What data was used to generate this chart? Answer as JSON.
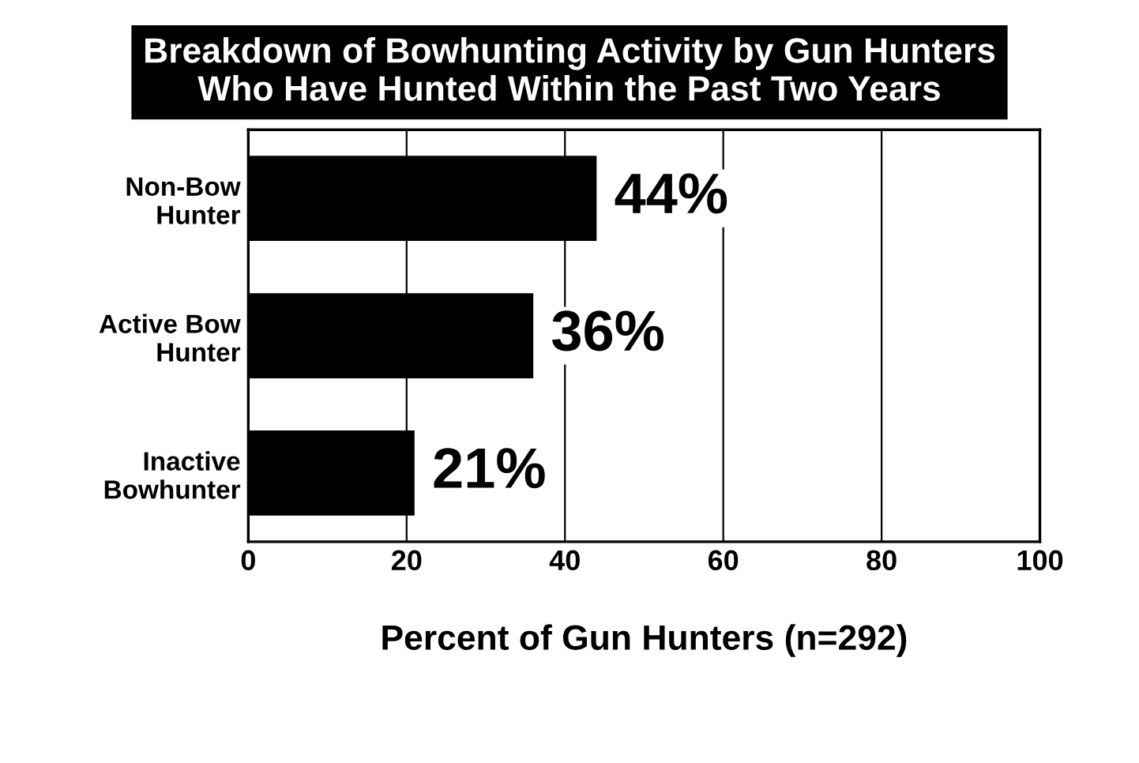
{
  "chart_data": {
    "type": "bar",
    "orientation": "horizontal",
    "title": "Breakdown of Bowhunting Activity by Gun Hunters\nWho Have Hunted Within the Past Two Years",
    "categories": [
      "Non-Bow\nHunter",
      "Active Bow\nHunter",
      "Inactive\nBowhunter"
    ],
    "values": [
      44,
      36,
      21
    ],
    "value_labels": [
      "44%",
      "36%",
      "21%"
    ],
    "color": "#000000",
    "xlim": [
      0,
      100
    ],
    "xticks": [
      0,
      20,
      40,
      60,
      80,
      100
    ],
    "grid": "x",
    "xlabel": "Percent of Gun Hunters (n=292)"
  }
}
